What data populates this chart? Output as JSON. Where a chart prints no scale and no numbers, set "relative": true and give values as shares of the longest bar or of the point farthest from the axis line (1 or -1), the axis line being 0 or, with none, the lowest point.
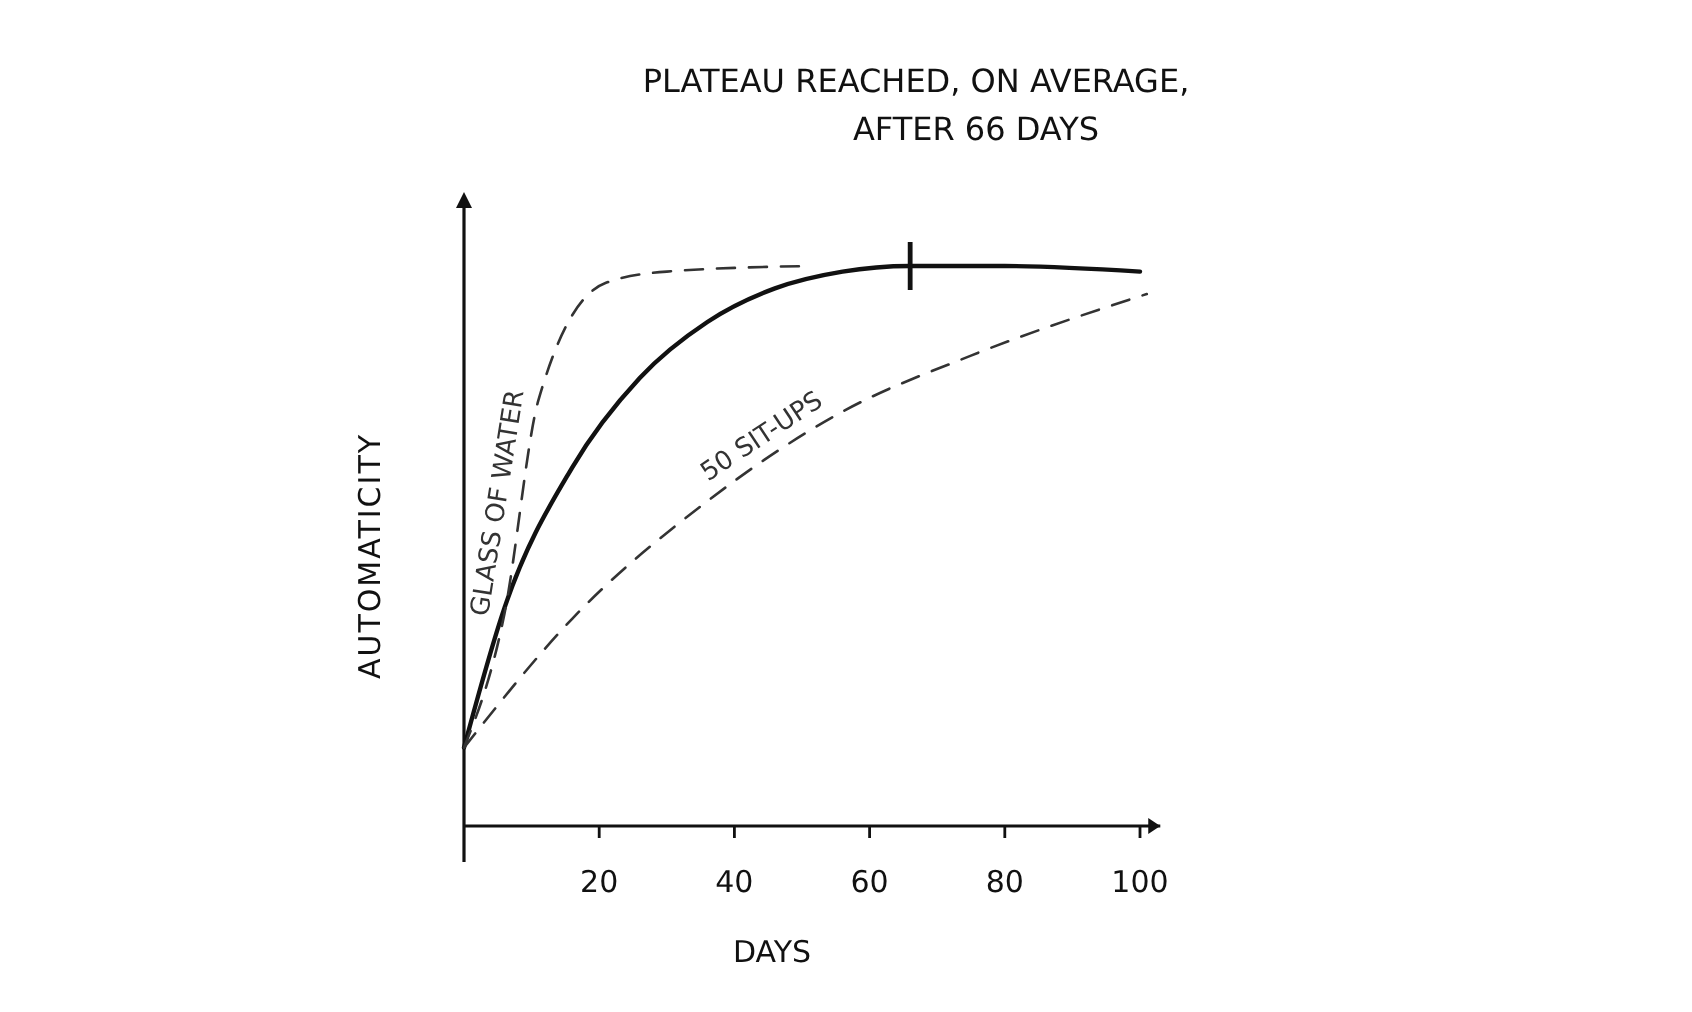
{
  "chart_data": {
    "type": "line",
    "relative": true,
    "xlabel": "DAYS",
    "ylabel": "AUTOMATICITY",
    "xlim": [
      0,
      103
    ],
    "xticks": [
      20,
      40,
      60,
      80,
      100
    ],
    "line_style": "solid",
    "annotations": [
      "PLATEAU REACHED, ON AVERAGE, AFTER 66 DAYS"
    ],
    "series": [
      {
        "color": "#111111",
        "x": [
          0,
          6,
          16,
          26,
          36,
          46,
          56,
          66,
          80,
          100
        ],
        "values": [
          0.14,
          0.39,
          0.64,
          0.8,
          0.9,
          0.96,
          0.99,
          1,
          1,
          0.99
        ]
      },
      {
        "name": "GLASS OF WATER",
        "color": "#333333",
        "line_style": "dashed",
        "x": [
          0,
          6,
          11,
          21,
          30,
          51
        ],
        "values": [
          0.14,
          0.38,
          0.76,
          0.97,
          0.99,
          1
        ]
      },
      {
        "name": "50 SIT-UPS",
        "color": "#333333",
        "line_style": "dashed",
        "x": [
          0,
          16,
          36,
          56,
          75,
          101
        ],
        "values": [
          0.14,
          0.37,
          0.58,
          0.74,
          0.84,
          0.95
        ]
      }
    ]
  }
}
